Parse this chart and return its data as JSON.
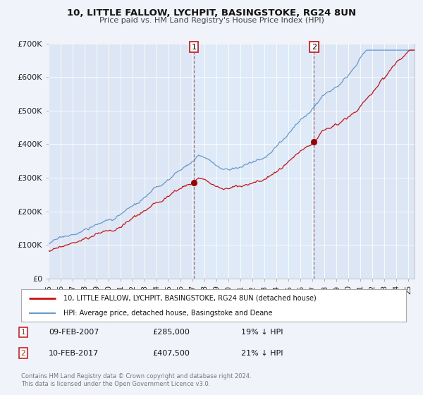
{
  "title": "10, LITTLE FALLOW, LYCHPIT, BASINGSTOKE, RG24 8UN",
  "subtitle": "Price paid vs. HM Land Registry's House Price Index (HPI)",
  "background_color": "#f0f4fa",
  "plot_bg_color": "#dce6f5",
  "ylabel": "",
  "xlabel": "",
  "ylim": [
    0,
    700000
  ],
  "yticks": [
    0,
    100000,
    200000,
    300000,
    400000,
    500000,
    600000,
    700000
  ],
  "ytick_labels": [
    "£0",
    "£100K",
    "£200K",
    "£300K",
    "£400K",
    "£500K",
    "£600K",
    "£700K"
  ],
  "xlim_start": 1995.0,
  "xlim_end": 2025.5,
  "xticks": [
    1995,
    1996,
    1997,
    1998,
    1999,
    2000,
    2001,
    2002,
    2003,
    2004,
    2005,
    2006,
    2007,
    2008,
    2009,
    2010,
    2011,
    2012,
    2013,
    2014,
    2015,
    2016,
    2017,
    2018,
    2019,
    2020,
    2021,
    2022,
    2023,
    2024,
    2025
  ],
  "xtick_labels": [
    "95",
    "96",
    "97",
    "98",
    "99",
    "00",
    "01",
    "02",
    "03",
    "04",
    "05",
    "06",
    "07",
    "08",
    "09",
    "10",
    "11",
    "12",
    "13",
    "14",
    "15",
    "16",
    "17",
    "18",
    "19",
    "20",
    "21",
    "22",
    "23",
    "24",
    "25"
  ],
  "hpi_color": "#6699cc",
  "price_color": "#cc1111",
  "marker_color": "#990000",
  "vline_color": "#cc4444",
  "annotation_box_color": "#cc2222",
  "shade_color": "#deeaf8",
  "marker1_x": 2007.11,
  "marker1_y": 285000,
  "marker2_x": 2017.11,
  "marker2_y": 407500,
  "vline1_x": 2007.11,
  "vline2_x": 2017.11,
  "legend_label_price": "10, LITTLE FALLOW, LYCHPIT, BASINGSTOKE, RG24 8UN (detached house)",
  "legend_label_hpi": "HPI: Average price, detached house, Basingstoke and Deane",
  "note1_num": "1",
  "note1_date": "09-FEB-2007",
  "note1_price": "£285,000",
  "note1_hpi": "19% ↓ HPI",
  "note2_num": "2",
  "note2_date": "10-FEB-2017",
  "note2_price": "£407,500",
  "note2_hpi": "21% ↓ HPI",
  "footer": "Contains HM Land Registry data © Crown copyright and database right 2024.\nThis data is licensed under the Open Government Licence v3.0."
}
